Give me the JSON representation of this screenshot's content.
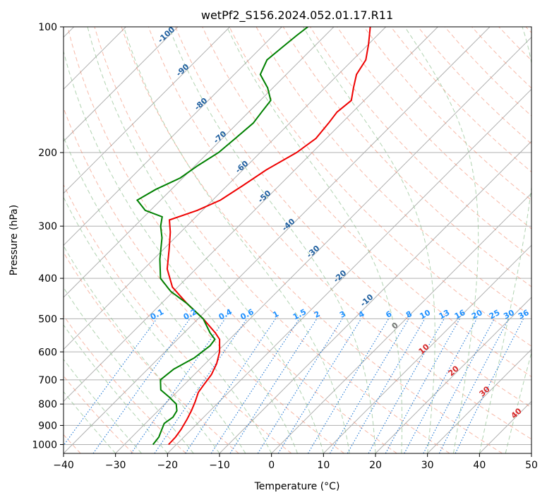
{
  "chart_data": {
    "type": "line",
    "title": "wetPf2_S156.2024.052.01.17.R11",
    "xlabel": "Temperature (°C)",
    "ylabel": "Pressure (hPa)",
    "xlim": [
      -40,
      50
    ],
    "ylim": [
      1050,
      100
    ],
    "y_scale": "log",
    "grid": true,
    "x_ticks": [
      -40,
      -30,
      -20,
      -10,
      0,
      10,
      20,
      30,
      40,
      50
    ],
    "y_ticks": [
      100,
      200,
      300,
      400,
      500,
      600,
      700,
      800,
      900,
      1000
    ],
    "series": [
      {
        "color": "#ee0000",
        "points": [
          [
            1000,
            -21.5
          ],
          [
            960,
            -21.6
          ],
          [
            920,
            -22.0
          ],
          [
            870,
            -22.8
          ],
          [
            830,
            -23.6
          ],
          [
            790,
            -24.6
          ],
          [
            750,
            -25.8
          ],
          [
            720,
            -26.2
          ],
          [
            680,
            -26.7
          ],
          [
            640,
            -27.8
          ],
          [
            600,
            -29.5
          ],
          [
            560,
            -31.9
          ],
          [
            540,
            -34.0
          ],
          [
            500,
            -39.0
          ],
          [
            460,
            -45.0
          ],
          [
            420,
            -51.0
          ],
          [
            380,
            -55.5
          ],
          [
            340,
            -59.0
          ],
          [
            310,
            -62.0
          ],
          [
            290,
            -64.5
          ],
          [
            275,
            -61.0
          ],
          [
            260,
            -58.5
          ],
          [
            240,
            -57.0
          ],
          [
            220,
            -55.5
          ],
          [
            200,
            -53.0
          ],
          [
            185,
            -52.0
          ],
          [
            170,
            -52.5
          ],
          [
            160,
            -53.0
          ],
          [
            150,
            -52.5
          ],
          [
            140,
            -54.5
          ],
          [
            130,
            -56.5
          ],
          [
            120,
            -57.5
          ],
          [
            110,
            -60.0
          ],
          [
            100,
            -63.0
          ]
        ]
      },
      {
        "color": "#008000",
        "points": [
          [
            1000,
            -24.5
          ],
          [
            960,
            -24.8
          ],
          [
            920,
            -25.7
          ],
          [
            890,
            -26.4
          ],
          [
            860,
            -25.9
          ],
          [
            830,
            -26.4
          ],
          [
            800,
            -27.8
          ],
          [
            770,
            -30.5
          ],
          [
            740,
            -33.5
          ],
          [
            700,
            -35.5
          ],
          [
            660,
            -35.0
          ],
          [
            620,
            -33.2
          ],
          [
            580,
            -32.5
          ],
          [
            560,
            -32.8
          ],
          [
            540,
            -35.0
          ],
          [
            500,
            -39.0
          ],
          [
            460,
            -45.0
          ],
          [
            430,
            -50.5
          ],
          [
            400,
            -55.0
          ],
          [
            360,
            -58.8
          ],
          [
            320,
            -62.5
          ],
          [
            300,
            -65.0
          ],
          [
            285,
            -66.5
          ],
          [
            275,
            -71.0
          ],
          [
            260,
            -74.5
          ],
          [
            245,
            -73.0
          ],
          [
            230,
            -70.5
          ],
          [
            215,
            -69.5
          ],
          [
            200,
            -68.0
          ],
          [
            185,
            -67.5
          ],
          [
            170,
            -67.0
          ],
          [
            160,
            -67.5
          ],
          [
            150,
            -68.0
          ],
          [
            140,
            -71.0
          ],
          [
            130,
            -75.0
          ],
          [
            120,
            -76.5
          ],
          [
            112,
            -76.0
          ],
          [
            105,
            -75.5
          ],
          [
            100,
            -75.0
          ]
        ]
      }
    ],
    "dry_adiabat_labels": [
      "-100",
      "-90",
      "-80",
      "-70",
      "-60",
      "-50",
      "-40",
      "-30",
      "-20",
      "-10"
    ],
    "mixing_ratio_labels": [
      "0.1",
      "0.2",
      "0.4",
      "0.6",
      "1",
      "1.5",
      "2",
      "3",
      "4",
      "6",
      "8",
      "10",
      "13",
      "16",
      "20",
      "25",
      "30",
      "36"
    ],
    "moist_adiabat_labels": [
      "0",
      "10",
      "20",
      "30",
      "40"
    ],
    "colors": {
      "isotherm": "#b0b0b0",
      "dry_adiabat": "#f08060",
      "moist_adiabat": "#90c090",
      "mixing_ratio": "#1f77d4",
      "dry_label": "#1f5f9f",
      "mixing_label": "#1e90ff",
      "moist_label_zero": "#777777",
      "moist_label": "#d62728"
    }
  }
}
